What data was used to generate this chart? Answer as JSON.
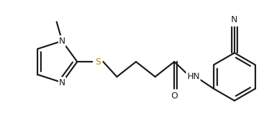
{
  "background_color": "#ffffff",
  "line_color": "#1a1a1a",
  "sulfur_color": "#b8860b",
  "line_width": 1.6,
  "figsize": [
    3.92,
    1.89
  ],
  "dpi": 100,
  "xlim": [
    0,
    392
  ],
  "ylim": [
    0,
    189
  ]
}
